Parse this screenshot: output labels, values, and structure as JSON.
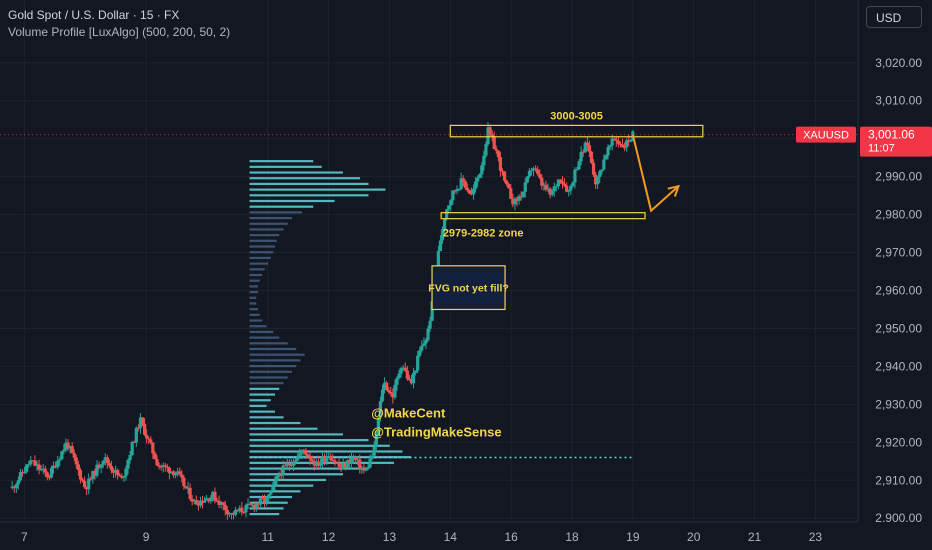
{
  "header": {
    "title": "Gold Spot / U.S. Dollar · 15 · FX",
    "subtitle": "Volume Profile [LuxAlgo] (500, 200, 50, 2)",
    "currency": "USD"
  },
  "colors": {
    "background": "#131722",
    "up": "#26a69a",
    "down": "#ef5350",
    "profile": "#5fd3d8",
    "accent_yellow": "#f0d74a",
    "arrow": "#f29a1f",
    "price_tag": "#f23645"
  },
  "chart_data": {
    "type": "candlestick",
    "symbol_tag": "XAUUSD",
    "last_price": 3001.06,
    "last_price_label": "3,001.06",
    "countdown": "11:07",
    "x_ticks": [
      "7",
      "9",
      "11",
      "12",
      "13",
      "14",
      "16",
      "18",
      "19",
      "20",
      "21",
      "23"
    ],
    "x_tick_pos": [
      7,
      9,
      11,
      12,
      13,
      14,
      15,
      16,
      17,
      18,
      19,
      20
    ],
    "x_range": [
      6.6,
      20.7
    ],
    "y_ticks": [
      2900,
      2910,
      2920,
      2930,
      2940,
      2950,
      2960,
      2970,
      2980,
      2990,
      3000,
      3010,
      3020
    ],
    "y_tick_labels": [
      "2,900.00",
      "2,910.00",
      "2,920.00",
      "2,930.00",
      "2,940.00",
      "2,950.00",
      "2,960.00",
      "2,970.00",
      "2,980.00",
      "2,990.00",
      "3,000.00",
      "3,010.00",
      "3,020.00"
    ],
    "ylim": [
      2899,
      3026
    ],
    "price_path": [
      [
        6.8,
        2908
      ],
      [
        7.1,
        2915
      ],
      [
        7.4,
        2911
      ],
      [
        7.7,
        2920
      ],
      [
        8.0,
        2908
      ],
      [
        8.3,
        2916
      ],
      [
        8.6,
        2910
      ],
      [
        8.9,
        2926
      ],
      [
        9.2,
        2914
      ],
      [
        9.5,
        2912
      ],
      [
        9.8,
        2904
      ],
      [
        10.1,
        2906
      ],
      [
        10.4,
        2901
      ],
      [
        10.7,
        2903
      ],
      [
        11.0,
        2905
      ],
      [
        11.2,
        2912
      ],
      [
        11.4,
        2915
      ],
      [
        11.6,
        2918
      ],
      [
        11.8,
        2914
      ],
      [
        12.0,
        2917
      ],
      [
        12.2,
        2913
      ],
      [
        12.4,
        2916
      ],
      [
        12.6,
        2912
      ],
      [
        12.75,
        2918
      ],
      [
        12.9,
        2936
      ],
      [
        13.05,
        2932
      ],
      [
        13.2,
        2941
      ],
      [
        13.35,
        2935
      ],
      [
        13.5,
        2944
      ],
      [
        13.62,
        2948
      ],
      [
        13.72,
        2958
      ],
      [
        13.82,
        2972
      ],
      [
        13.92,
        2981
      ],
      [
        14.05,
        2986
      ],
      [
        14.2,
        2989
      ],
      [
        14.35,
        2985
      ],
      [
        14.5,
        2992
      ],
      [
        14.62,
        3002
      ],
      [
        14.75,
        2997
      ],
      [
        14.9,
        2988
      ],
      [
        15.05,
        2983
      ],
      [
        15.2,
        2986
      ],
      [
        15.35,
        2993
      ],
      [
        15.5,
        2988
      ],
      [
        15.65,
        2985
      ],
      [
        15.8,
        2990
      ],
      [
        15.95,
        2986
      ],
      [
        16.1,
        2994
      ],
      [
        16.25,
        2999
      ],
      [
        16.4,
        2988
      ],
      [
        16.55,
        2996
      ],
      [
        16.7,
        3000
      ],
      [
        16.85,
        2998
      ],
      [
        17.0,
        3001
      ]
    ],
    "volume_profile": {
      "bars": [
        [
          2994.0,
          75
        ],
        [
          2992.5,
          85
        ],
        [
          2991.0,
          110
        ],
        [
          2989.5,
          130
        ],
        [
          2988.0,
          140
        ],
        [
          2986.5,
          160
        ],
        [
          2985.0,
          140
        ],
        [
          2983.5,
          100
        ],
        [
          2982.0,
          75
        ],
        [
          2980.5,
          62
        ],
        [
          2979.0,
          50
        ],
        [
          2977.5,
          45
        ],
        [
          2976.0,
          40
        ],
        [
          2974.5,
          35
        ],
        [
          2973.0,
          32
        ],
        [
          2971.5,
          30
        ],
        [
          2970.0,
          28
        ],
        [
          2968.5,
          25
        ],
        [
          2967.0,
          22
        ],
        [
          2965.5,
          18
        ],
        [
          2964.0,
          15
        ],
        [
          2962.5,
          12
        ],
        [
          2961.0,
          10
        ],
        [
          2959.5,
          10
        ],
        [
          2958.0,
          8
        ],
        [
          2956.5,
          8
        ],
        [
          2955.0,
          10
        ],
        [
          2953.5,
          12
        ],
        [
          2952.0,
          15
        ],
        [
          2950.5,
          20
        ],
        [
          2949.0,
          28
        ],
        [
          2947.5,
          35
        ],
        [
          2946.0,
          45
        ],
        [
          2944.5,
          55
        ],
        [
          2943.0,
          65
        ],
        [
          2941.5,
          60
        ],
        [
          2940.0,
          55
        ],
        [
          2938.5,
          50
        ],
        [
          2937.0,
          45
        ],
        [
          2935.5,
          40
        ],
        [
          2934.0,
          35
        ],
        [
          2932.5,
          30
        ],
        [
          2931.0,
          25
        ],
        [
          2929.5,
          20
        ],
        [
          2928.0,
          30
        ],
        [
          2926.5,
          40
        ],
        [
          2925.0,
          60
        ],
        [
          2923.5,
          80
        ],
        [
          2922.0,
          110
        ],
        [
          2920.5,
          140
        ],
        [
          2919.0,
          165
        ],
        [
          2917.5,
          180
        ],
        [
          2916.0,
          190
        ],
        [
          2914.5,
          170
        ],
        [
          2913.0,
          140
        ],
        [
          2911.5,
          110
        ],
        [
          2910.0,
          90
        ],
        [
          2908.5,
          75
        ],
        [
          2907.0,
          60
        ],
        [
          2905.5,
          50
        ],
        [
          2904.0,
          45
        ],
        [
          2902.5,
          40
        ],
        [
          2901.0,
          35
        ]
      ],
      "poc": 2916
    },
    "annotations": [
      {
        "kind": "zone",
        "label": "3000-3005",
        "price_low": 3000.5,
        "price_high": 3003.5,
        "x_start": 14.0,
        "x_end": 18.15
      },
      {
        "kind": "zone",
        "label": "2979-2982 zone",
        "price_low": 2979.0,
        "price_high": 2980.5,
        "x_start": 13.85,
        "x_end": 17.2
      },
      {
        "kind": "box",
        "label": "FVG not yet fill?",
        "price_low": 2955.0,
        "price_high": 2966.5,
        "x_start": 13.7,
        "x_end": 14.9
      },
      {
        "kind": "text",
        "label": "@MakeCent",
        "price": 2926.5,
        "x": 12.7
      },
      {
        "kind": "text",
        "label": "@TradingMakeSense",
        "price": 2921.5,
        "x": 12.7
      }
    ],
    "projection": [
      [
        17.0,
        3001
      ],
      [
        17.3,
        2981
      ],
      [
        17.75,
        2987.5
      ]
    ]
  }
}
